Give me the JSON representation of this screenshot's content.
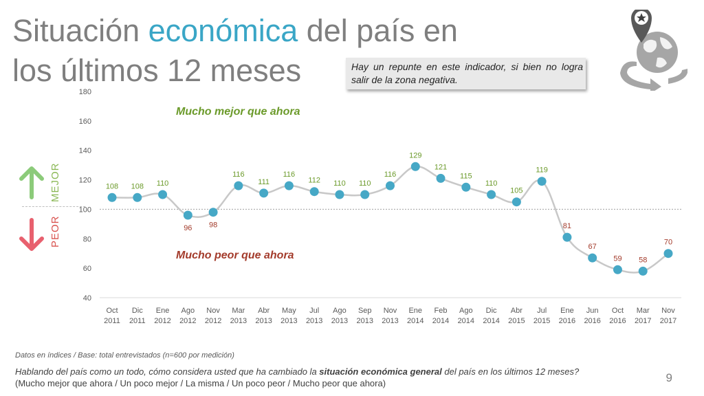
{
  "title": {
    "before": "Situación ",
    "highlight": "económica",
    "after": " del país en los últimos 12 meses"
  },
  "callout": "Hay un repunte en este indicador, si bien no logra salir de la zona negativa.",
  "side": {
    "better": "MEJOR",
    "worse": "PEOR"
  },
  "footnote": "Datos en índices / Base: total entrevistados (n=600 por medición)",
  "question": {
    "before": "Hablando del país como un todo, cómo considera usted que ha cambiado la ",
    "bold": "situación económica general",
    "after": " del país en los últimos 12 meses?",
    "options": "(Mucho mejor que ahora / Un poco mejor / La misma / Un poco peor / Mucho peor que ahora)"
  },
  "page_number": "9",
  "colors": {
    "line": "#c8c8c8",
    "marker": "#46a8c6",
    "positive": "#6b9a2a",
    "negative": "#a33b2b",
    "up_arrow": "#8ccb7a",
    "down_arrow": "#e8606e",
    "title_accent": "#3aa6c6"
  },
  "icons": [
    "arrow-up-icon",
    "arrow-down-icon",
    "globe-location-icon"
  ],
  "chart_data": {
    "type": "line",
    "categories": [
      [
        "Oct",
        "2011"
      ],
      [
        "Dic",
        "2011"
      ],
      [
        "Ene",
        "2012"
      ],
      [
        "Ago",
        "2012"
      ],
      [
        "Nov",
        "2012"
      ],
      [
        "Mar",
        "2013"
      ],
      [
        "Abr",
        "2013"
      ],
      [
        "May",
        "2013"
      ],
      [
        "Jul",
        "2013"
      ],
      [
        "Ago",
        "2013"
      ],
      [
        "Sep",
        "2013"
      ],
      [
        "Nov",
        "2013"
      ],
      [
        "Ene",
        "2014"
      ],
      [
        "Feb",
        "2014"
      ],
      [
        "Ago",
        "2014"
      ],
      [
        "Dic",
        "2014"
      ],
      [
        "Abr",
        "2015"
      ],
      [
        "Jul",
        "2015"
      ],
      [
        "Ene",
        "2016"
      ],
      [
        "Jun",
        "2016"
      ],
      [
        "Oct",
        "2016"
      ],
      [
        "Mar",
        "2017"
      ],
      [
        "Nov",
        "2017"
      ]
    ],
    "values": [
      108,
      108,
      110,
      96,
      98,
      116,
      111,
      116,
      112,
      110,
      110,
      116,
      129,
      121,
      115,
      110,
      105,
      119,
      81,
      67,
      59,
      58,
      70
    ],
    "ylim": [
      40,
      180
    ],
    "yticks": [
      40,
      60,
      80,
      100,
      120,
      140,
      160,
      180
    ],
    "reference_line": 100,
    "annotations": {
      "upper": "Mucho mejor que ahora",
      "lower": "Mucho peor que ahora"
    },
    "grid": false
  }
}
